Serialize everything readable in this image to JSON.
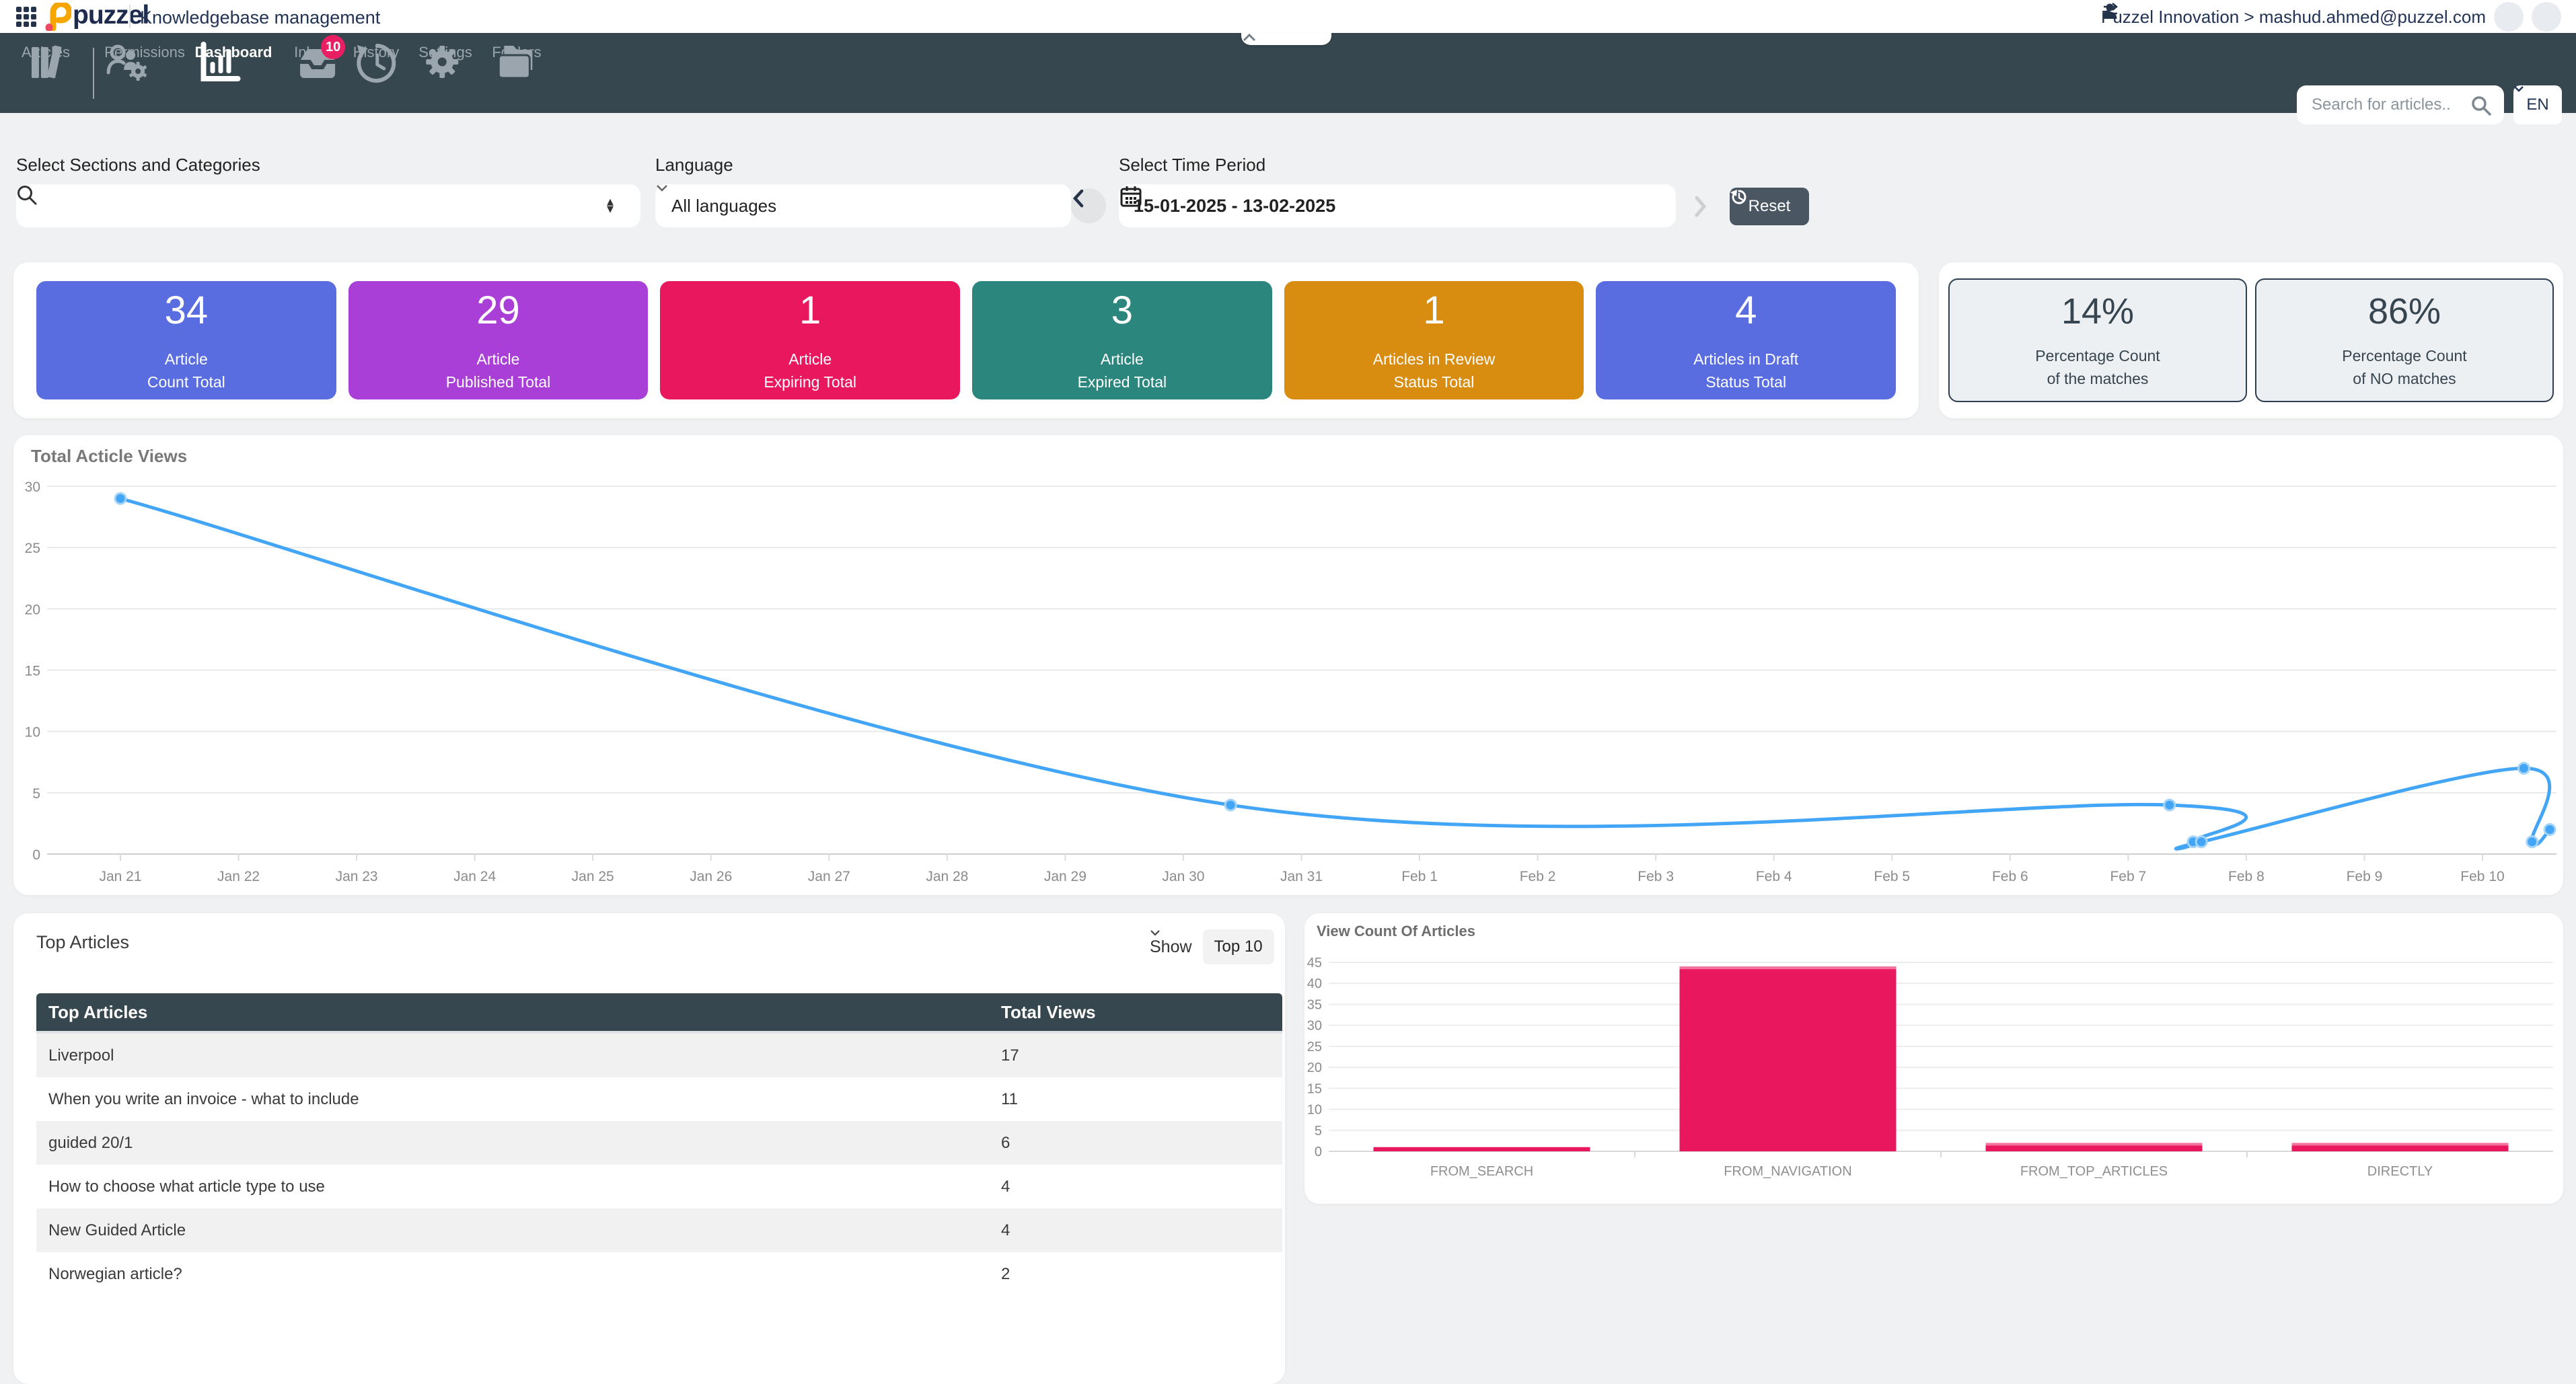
{
  "topbar": {
    "brand": "puzzel",
    "app_title": "Knowledgebase management",
    "account": "Puzzel Innovation > mashud.ahmed@puzzel.com"
  },
  "navbar": {
    "items": [
      {
        "label": "Articles"
      },
      {
        "label": "Permissions"
      },
      {
        "label": "Dashboard",
        "active": true
      },
      {
        "label": "Inbox",
        "badge": "10"
      },
      {
        "label": "History"
      },
      {
        "label": "Settings"
      },
      {
        "label": "Folders"
      }
    ],
    "search_placeholder": "Search for articles..",
    "language_selector": "EN"
  },
  "filters": {
    "sections_label": "Select Sections and Categories",
    "language_label": "Language",
    "language_value": "All languages",
    "period_label": "Select Time Period",
    "period_value": "15-01-2025 - 13-02-2025",
    "reset_label": "Reset"
  },
  "stat_cards": [
    {
      "value": "34",
      "line1": "Article",
      "line2": "Count Total",
      "color": "#5a6de0"
    },
    {
      "value": "29",
      "line1": "Article",
      "line2": "Published Total",
      "color": "#a93fd6"
    },
    {
      "value": "1",
      "line1": "Article",
      "line2": "Expiring Total",
      "color": "#e9185e"
    },
    {
      "value": "3",
      "line1": "Article",
      "line2": "Expired Total",
      "color": "#2b867e"
    },
    {
      "value": "1",
      "line1": "Articles in Review",
      "line2": "Status Total",
      "color": "#d88d10"
    },
    {
      "value": "4",
      "line1": "Articles in Draft",
      "line2": "Status Total",
      "color": "#5a6de0"
    }
  ],
  "pct_cards": [
    {
      "value": "14%",
      "line1": "Percentage Count",
      "line2": "of the matches"
    },
    {
      "value": "86%",
      "line1": "Percentage Count",
      "line2": "of NO matches"
    }
  ],
  "top_articles": {
    "section_title": "Top Articles",
    "show_label": "Show",
    "show_value": "Top 10",
    "columns": [
      "Top Articles",
      "Total Views"
    ],
    "rows": [
      {
        "title": "Liverpool",
        "views": "17"
      },
      {
        "title": "When you write an invoice - what to include",
        "views": "11"
      },
      {
        "title": "guided 20/1",
        "views": "6"
      },
      {
        "title": "How to choose what article type to use",
        "views": "4"
      },
      {
        "title": "New Guided Article",
        "views": "4"
      },
      {
        "title": "Norwegian article?",
        "views": "2"
      }
    ]
  },
  "chart_data": [
    {
      "type": "line",
      "title": "Total Acticle Views",
      "x_ticks": [
        "Jan 21",
        "Jan 22",
        "Jan 23",
        "Jan 24",
        "Jan 25",
        "Jan 26",
        "Jan 27",
        "Jan 28",
        "Jan 29",
        "Jan 30",
        "Jan 31",
        "Feb 1",
        "Feb 2",
        "Feb 3",
        "Feb 4",
        "Feb 5",
        "Feb 6",
        "Feb 7",
        "Feb 8",
        "Feb 9",
        "Feb 10"
      ],
      "points": [
        {
          "day": 0,
          "value": 29
        },
        {
          "day": 9.4,
          "value": 4
        },
        {
          "day": 17.35,
          "value": 4
        },
        {
          "day": 17.55,
          "value": 1
        },
        {
          "day": 17.62,
          "value": 1
        },
        {
          "day": 20.35,
          "value": 7
        },
        {
          "day": 20.42,
          "value": 1
        },
        {
          "day": 20.57,
          "value": 2
        }
      ],
      "ylim": [
        0,
        30
      ],
      "y_ticks": [
        0,
        5,
        10,
        15,
        20,
        25,
        30
      ],
      "line_color": "#42a5f5",
      "grid": true
    },
    {
      "type": "bar",
      "title": "View Count Of Articles",
      "categories": [
        "FROM_SEARCH",
        "FROM_NAVIGATION",
        "FROM_TOP_ARTICLES",
        "DIRECTLY"
      ],
      "values": [
        1,
        44,
        2,
        2
      ],
      "ylim": [
        0,
        45
      ],
      "y_ticks": [
        0,
        5,
        10,
        15,
        20,
        25,
        30,
        35,
        40,
        45
      ],
      "bar_color": "#e9185e",
      "grid": true
    }
  ]
}
